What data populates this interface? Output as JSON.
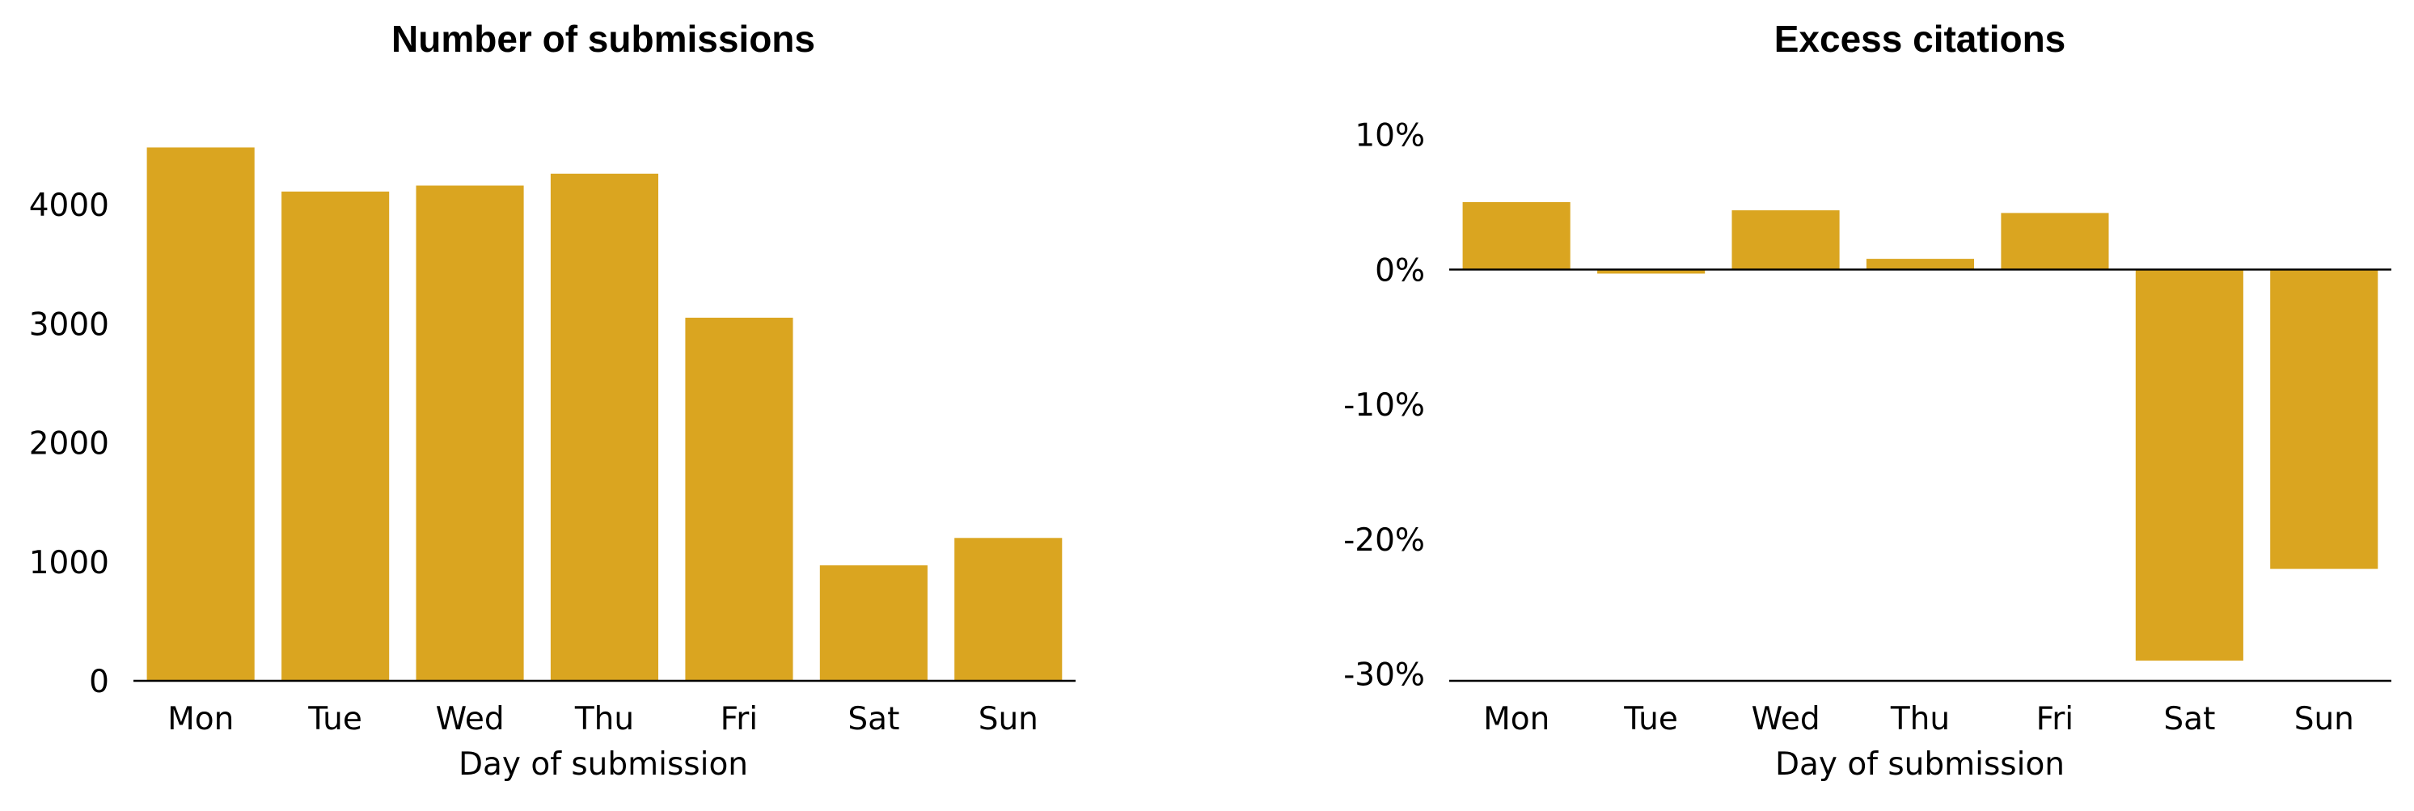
{
  "colors": {
    "bar": "#DAA520",
    "axis": "#000000",
    "background": "#ffffff"
  },
  "chart_data": [
    {
      "type": "bar",
      "title": "Number of submissions",
      "xlabel": "Day of submission",
      "ylabel": "",
      "categories": [
        "Mon",
        "Tue",
        "Wed",
        "Thu",
        "Fri",
        "Sat",
        "Sun"
      ],
      "values": [
        4480,
        4110,
        4160,
        4260,
        3050,
        970,
        1200
      ],
      "ylim": [
        0,
        4700
      ],
      "yticks": [
        0,
        1000,
        2000,
        3000,
        4000
      ],
      "ytick_labels": [
        "0",
        "1000",
        "2000",
        "3000",
        "4000"
      ],
      "grid": false,
      "legend": "none"
    },
    {
      "type": "bar",
      "title": "Excess citations",
      "xlabel": "Day of submission",
      "ylabel": "",
      "categories": [
        "Mon",
        "Tue",
        "Wed",
        "Thu",
        "Fri",
        "Sat",
        "Sun"
      ],
      "values": [
        5.0,
        -0.3,
        4.4,
        0.8,
        4.2,
        -29.0,
        -22.2
      ],
      "unit": "%",
      "ylim": [
        -30.5,
        11
      ],
      "yticks": [
        -30,
        -20,
        -10,
        0,
        10
      ],
      "ytick_labels": [
        "-30%",
        "-20%",
        "-10%",
        "0%",
        "10%"
      ],
      "grid": false,
      "legend": "none"
    }
  ]
}
